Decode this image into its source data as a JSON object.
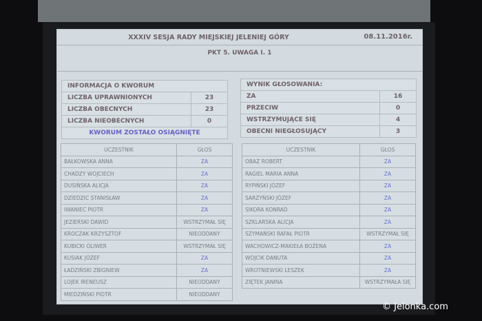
{
  "header": {
    "title": "XXXIV SESJA RADY MIEJSKIEJ JELENIEJ GÓRY",
    "date": "08.11.2016r.",
    "item": "PKT 5. UWAGA I. 1"
  },
  "quorum": {
    "title": "INFORMACJA O KWORUM",
    "rows": [
      {
        "label": "LICZBA UPRAWNIONYCH",
        "value": "23"
      },
      {
        "label": "LICZBA OBECNYCH",
        "value": "23"
      },
      {
        "label": "LICZBA NIEOBECNYCH",
        "value": "0"
      }
    ],
    "status": "KWORUM ZOSTAŁO OSIĄGNIĘTE"
  },
  "result": {
    "title": "WYNIK GŁOSOWANIA:",
    "rows": [
      {
        "label": "ZA",
        "value": "16"
      },
      {
        "label": "PRZECIW",
        "value": "0"
      },
      {
        "label": "WSTRZYMUJĄCE SIĘ",
        "value": "4"
      },
      {
        "label": "OBECNI NIEGŁOSUJĄCY",
        "value": "3"
      }
    ]
  },
  "columns": {
    "participant": "UCZESTNIK",
    "vote": "GŁOS"
  },
  "left": [
    [
      "BAŁKOWSKA ANNA",
      "ZA"
    ],
    [
      "CHADZY WOJCIECH",
      "ZA"
    ],
    [
      "DUSIŃSKA ALICJA",
      "ZA"
    ],
    [
      "DZIEDZIC STANISŁAW",
      "ZA"
    ],
    [
      "IWANIEC PIOTR",
      "ZA"
    ],
    [
      "JEZIERSKI DAWID",
      "WSTRZYMAŁ SIĘ"
    ],
    [
      "KROCZAK KRZYSZTOF",
      "NIEODDANY"
    ],
    [
      "KUBICKI OLIWER",
      "WSTRZYMAŁ SIĘ"
    ],
    [
      "KUSIAK JÓZEF",
      "ZA"
    ],
    [
      "ŁADZIŃSKI ZBIGNIEW",
      "ZA"
    ],
    [
      "LOJEK IRENEUSZ",
      "NIEODDANY"
    ],
    [
      "MIEDZIŃSKI PIOTR",
      "NIEODDANY"
    ]
  ],
  "right": [
    [
      "OBAZ ROBERT",
      "ZA"
    ],
    [
      "RAGIEL MARIA ANNA",
      "ZA"
    ],
    [
      "RYPIŃSKI JÓZEF",
      "ZA"
    ],
    [
      "SARZYŃSKI JÓZEF",
      "ZA"
    ],
    [
      "SIKORA KONRAD",
      "ZA"
    ],
    [
      "SZKLARSKA ALICJA",
      "ZA"
    ],
    [
      "SZYMAŃSKI RAFAŁ PIOTR",
      "WSTRZYMAŁ SIĘ"
    ],
    [
      "WACHOWICZ-MAKIEŁA BOŻENA",
      "ZA"
    ],
    [
      "WÓJCIK DANUTA",
      "ZA"
    ],
    [
      "WROTNIEWSKI LESZEK",
      "ZA"
    ],
    [
      "ZIĘTEK JANINA",
      "WSTRZYMAŁA SIĘ"
    ]
  ],
  "watermark": "© Jelonka.com"
}
